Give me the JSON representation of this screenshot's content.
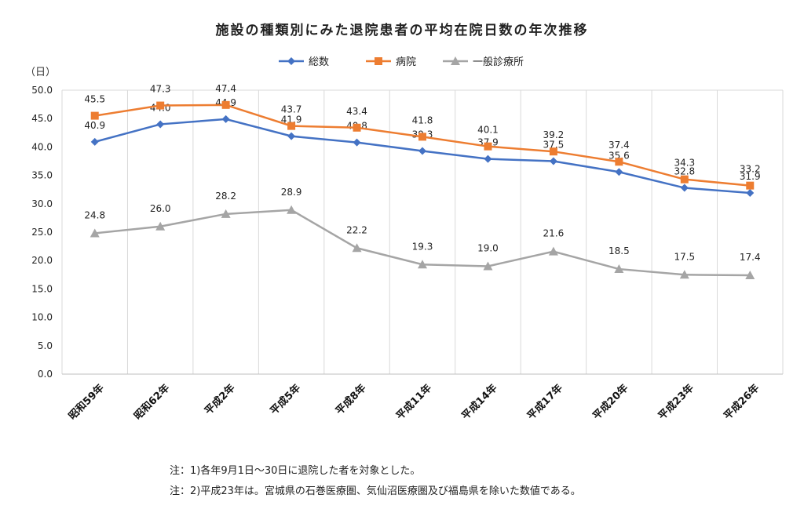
{
  "chart_data": {
    "type": "line",
    "title": "施設の種類別にみた退院患者の平均在院日数の年次推移",
    "unit_label": "（日）",
    "categories": [
      "昭和59年",
      "昭和62年",
      "平成2年",
      "平成5年",
      "平成8年",
      "平成11年",
      "平成14年",
      "平成17年",
      "平成20年",
      "平成23年",
      "平成26年"
    ],
    "ylim": [
      0,
      50
    ],
    "yticks": [
      "0.0",
      "5.0",
      "10.0",
      "15.0",
      "20.0",
      "25.0",
      "30.0",
      "35.0",
      "40.0",
      "45.0",
      "50.0"
    ],
    "grid": "vertical-category-lines",
    "legend_position": "top",
    "series": [
      {
        "name": "総数",
        "color": "#4472C4",
        "marker": "diamond",
        "values": [
          40.9,
          44.0,
          44.9,
          41.9,
          40.8,
          39.3,
          37.9,
          37.5,
          35.6,
          32.8,
          31.9
        ],
        "labels": [
          "40.9",
          "44.0",
          "44.9",
          "41.9",
          "40.8",
          "39.3",
          "37.9",
          "37.5",
          "35.6",
          "32.8",
          "31.9"
        ]
      },
      {
        "name": "病院",
        "color": "#ED7D31",
        "marker": "square",
        "values": [
          45.5,
          47.3,
          47.4,
          43.7,
          43.4,
          41.8,
          40.1,
          39.2,
          37.4,
          34.3,
          33.2
        ],
        "labels": [
          "45.5",
          "47.3",
          "47.4",
          "43.7",
          "43.4",
          "41.8",
          "40.1",
          "39.2",
          "37.4",
          "34.3",
          "33.2"
        ]
      },
      {
        "name": "一般診療所",
        "color": "#A5A5A5",
        "marker": "triangle",
        "values": [
          24.8,
          26.0,
          28.2,
          28.9,
          22.2,
          19.3,
          19.0,
          21.6,
          18.5,
          17.5,
          17.4
        ],
        "labels": [
          "24.8",
          "26.0",
          "28.2",
          "28.9",
          "22.2",
          "19.3",
          "19.0",
          "21.6",
          "18.5",
          "17.5",
          "17.4"
        ]
      }
    ]
  },
  "notes": {
    "note1": "注：1)各年9月1日～30日に退院した者を対象とした。",
    "note2": "注：2)平成23年は。宮城県の石巻医療圏、気仙沼医療圏及び福島県を除いた数値である。"
  }
}
